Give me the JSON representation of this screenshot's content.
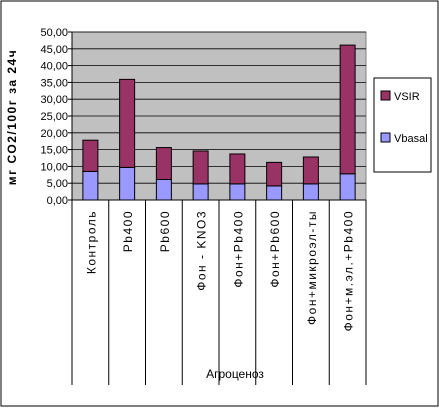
{
  "chart_data": {
    "type": "bar",
    "stacked": true,
    "ylabel": "мг СО2/100г за 24ч",
    "xlabel": "Агроценоз",
    "ylim": [
      0,
      50
    ],
    "yticks": [
      "0,00",
      "5,00",
      "10,00",
      "15,00",
      "20,00",
      "25,00",
      "30,00",
      "35,00",
      "40,00",
      "45,00",
      "50,00"
    ],
    "ytick_values": [
      0,
      5,
      10,
      15,
      20,
      25,
      30,
      35,
      40,
      45,
      50
    ],
    "grid": true,
    "legend_position": "right",
    "plot_background": "#c0c0c0",
    "categories": [
      "Контроль",
      "Pb400",
      "Pb600",
      "Фон - KNO3",
      "Фон+Pb400",
      "Фон+Pb600",
      "Фон+микроэл-ты",
      "Фон+м.эл.+Pb400"
    ],
    "series": [
      {
        "name": "Vbasal",
        "color": "#9999ff",
        "values": [
          8.5,
          9.7,
          6.1,
          4.8,
          4.8,
          4.2,
          4.8,
          7.8
        ]
      },
      {
        "name": "VSIR",
        "color": "#993366",
        "values": [
          9.3,
          26.2,
          9.5,
          9.8,
          8.9,
          7.0,
          8.0,
          38.3
        ]
      }
    ]
  }
}
